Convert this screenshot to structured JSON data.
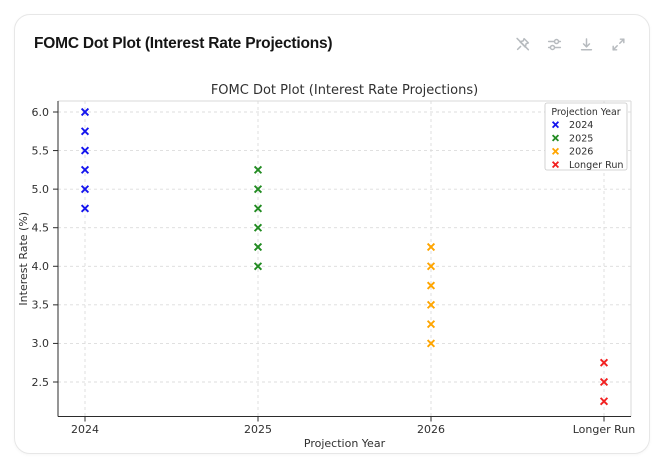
{
  "card": {
    "title": "FOMC Dot Plot (Interest Rate Projections)",
    "toolbar": {
      "buttons": [
        {
          "name": "unpin",
          "icon": "pin-off-icon"
        },
        {
          "name": "settings",
          "icon": "sliders-icon"
        },
        {
          "name": "download",
          "icon": "download-icon"
        },
        {
          "name": "expand",
          "icon": "expand-icon"
        }
      ]
    }
  },
  "chart_data": {
    "type": "scatter",
    "title": "FOMC Dot Plot (Interest Rate Projections)",
    "xlabel": "Projection Year",
    "ylabel": "Interest Rate (%)",
    "categories": [
      "2024",
      "2025",
      "2026",
      "Longer Run"
    ],
    "legend_title": "Projection Year",
    "legend_position": "upper right",
    "grid": true,
    "grid_style": "dashed",
    "marker": "x",
    "ylim": [
      2.05,
      6.15
    ],
    "yticks": [
      2.5,
      3.0,
      3.5,
      4.0,
      4.5,
      5.0,
      5.5,
      6.0
    ],
    "series": [
      {
        "name": "2024",
        "color": "#1414ee",
        "values": [
          6.0,
          5.75,
          5.5,
          5.25,
          5.0,
          4.75
        ]
      },
      {
        "name": "2025",
        "color": "#228b22",
        "values": [
          5.25,
          5.0,
          4.75,
          4.5,
          4.25,
          4.0
        ]
      },
      {
        "name": "2026",
        "color": "#ffa500",
        "values": [
          4.25,
          4.0,
          3.75,
          3.5,
          3.25,
          3.0
        ]
      },
      {
        "name": "Longer Run",
        "color": "#f22020",
        "values": [
          2.75,
          2.5,
          2.25
        ]
      }
    ],
    "text_color": "#303030",
    "spine_color": "#2b2b2b",
    "light_spine_color": "#dadada",
    "grid_color": "#dcdcdc"
  }
}
